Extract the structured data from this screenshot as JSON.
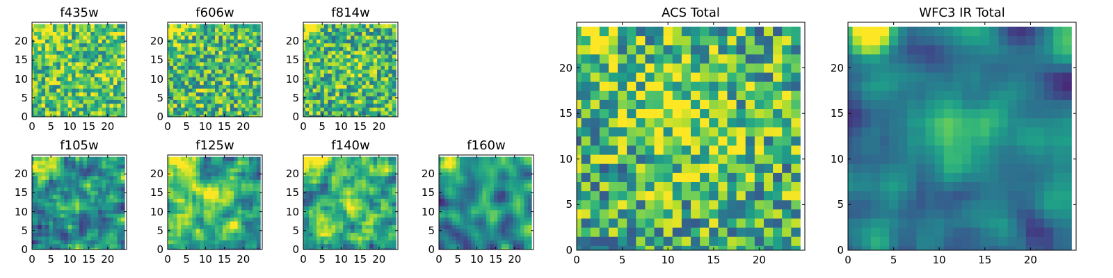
{
  "figure": {
    "colormap": "viridis",
    "frame_color": "#000000",
    "background": "#ffffff"
  },
  "chart_data": [
    {
      "id": "f435w",
      "type": "heatmap",
      "title": "f435w",
      "grid_size": 25,
      "xticks": [
        0,
        5,
        10,
        15,
        20
      ],
      "yticks": [
        0,
        5,
        10,
        15,
        20
      ],
      "xlim": [
        0,
        25
      ],
      "ylim": [
        0,
        25
      ],
      "mean": 0.72,
      "contrast": 0.3,
      "smooth": 0,
      "seed": 11,
      "blobs": [
        {
          "x": 2,
          "y": 23,
          "a": 0.25,
          "r": 2
        }
      ]
    },
    {
      "id": "f606w",
      "type": "heatmap",
      "title": "f606w",
      "grid_size": 25,
      "xticks": [
        0,
        5,
        10,
        15,
        20
      ],
      "yticks": [
        0,
        5,
        10,
        15,
        20
      ],
      "xlim": [
        0,
        25
      ],
      "ylim": [
        0,
        25
      ],
      "mean": 0.68,
      "contrast": 0.32,
      "smooth": 0,
      "seed": 23,
      "blobs": [
        {
          "x": 2,
          "y": 23,
          "a": 0.3,
          "r": 2
        }
      ]
    },
    {
      "id": "f814w",
      "type": "heatmap",
      "title": "f814w",
      "grid_size": 25,
      "xticks": [
        0,
        5,
        10,
        15,
        20
      ],
      "yticks": [
        0,
        5,
        10,
        15,
        20
      ],
      "xlim": [
        0,
        25
      ],
      "ylim": [
        0,
        25
      ],
      "mean": 0.66,
      "contrast": 0.32,
      "smooth": 0,
      "seed": 37,
      "blobs": [
        {
          "x": 2,
          "y": 23,
          "a": 0.3,
          "r": 2
        },
        {
          "x": 14,
          "y": 13,
          "a": 0.15,
          "r": 3
        }
      ]
    },
    {
      "id": "f105w",
      "type": "heatmap",
      "title": "f105w",
      "grid_size": 25,
      "xticks": [
        0,
        5,
        10,
        15,
        20
      ],
      "yticks": [
        0,
        5,
        10,
        15,
        20
      ],
      "xlim": [
        0,
        25
      ],
      "ylim": [
        0,
        25
      ],
      "mean": 0.52,
      "contrast": 0.42,
      "smooth": 1,
      "seed": 41,
      "blobs": [
        {
          "x": 2,
          "y": 23,
          "a": 0.5,
          "r": 3
        },
        {
          "x": 12,
          "y": 13,
          "a": 0.2,
          "r": 3
        }
      ]
    },
    {
      "id": "f125w",
      "type": "heatmap",
      "title": "f125w",
      "grid_size": 25,
      "xticks": [
        0,
        5,
        10,
        15,
        20
      ],
      "yticks": [
        0,
        5,
        10,
        15,
        20
      ],
      "xlim": [
        0,
        25
      ],
      "ylim": [
        0,
        25
      ],
      "mean": 0.6,
      "contrast": 0.42,
      "smooth": 1,
      "seed": 53,
      "blobs": [
        {
          "x": 2,
          "y": 23,
          "a": 0.4,
          "r": 3
        },
        {
          "x": 12,
          "y": 14,
          "a": 0.25,
          "r": 3
        }
      ]
    },
    {
      "id": "f140w",
      "type": "heatmap",
      "title": "f140w",
      "grid_size": 25,
      "xticks": [
        0,
        5,
        10,
        15,
        20
      ],
      "yticks": [
        0,
        5,
        10,
        15,
        20
      ],
      "xlim": [
        0,
        25
      ],
      "ylim": [
        0,
        25
      ],
      "mean": 0.6,
      "contrast": 0.42,
      "smooth": 1,
      "seed": 67,
      "blobs": [
        {
          "x": 2,
          "y": 23,
          "a": 0.4,
          "r": 3
        },
        {
          "x": 12,
          "y": 14,
          "a": 0.2,
          "r": 3
        }
      ]
    },
    {
      "id": "f160w",
      "type": "heatmap",
      "title": "f160w",
      "grid_size": 25,
      "xticks": [
        0,
        5,
        10,
        15,
        20
      ],
      "yticks": [
        0,
        5,
        10,
        15,
        20
      ],
      "xlim": [
        0,
        25
      ],
      "ylim": [
        0,
        25
      ],
      "mean": 0.46,
      "contrast": 0.38,
      "smooth": 2,
      "seed": 79,
      "blobs": [
        {
          "x": 2,
          "y": 23,
          "a": 0.55,
          "r": 2
        },
        {
          "x": 12,
          "y": 12,
          "a": 0.2,
          "r": 3
        }
      ]
    },
    {
      "id": "acs_total",
      "type": "heatmap",
      "title": "ACS Total",
      "grid_size": 25,
      "xticks": [
        0,
        5,
        10,
        15,
        20
      ],
      "yticks": [
        0,
        5,
        10,
        15,
        20
      ],
      "xlim": [
        0,
        25
      ],
      "ylim": [
        0,
        25
      ],
      "mean": 0.63,
      "contrast": 0.36,
      "smooth": 0,
      "seed": 97,
      "blobs": [
        {
          "x": 1,
          "y": 24,
          "a": 0.35,
          "r": 2
        },
        {
          "x": 10,
          "y": 18,
          "a": 0.15,
          "r": 4
        },
        {
          "x": 13,
          "y": 13,
          "a": 0.15,
          "r": 4
        }
      ]
    },
    {
      "id": "wfc3_ir_total",
      "type": "heatmap",
      "title": "WFC3 IR Total",
      "grid_size": 25,
      "xticks": [
        0,
        5,
        10,
        15,
        20
      ],
      "yticks": [
        0,
        5,
        10,
        15,
        20
      ],
      "xlim": [
        0,
        25
      ],
      "ylim": [
        0,
        25
      ],
      "mean": 0.42,
      "contrast": 0.3,
      "smooth": 2,
      "seed": 113,
      "blobs": [
        {
          "x": 2,
          "y": 24,
          "a": 0.6,
          "r": 2
        },
        {
          "x": 12,
          "y": 13,
          "a": 0.25,
          "r": 3
        }
      ]
    }
  ]
}
